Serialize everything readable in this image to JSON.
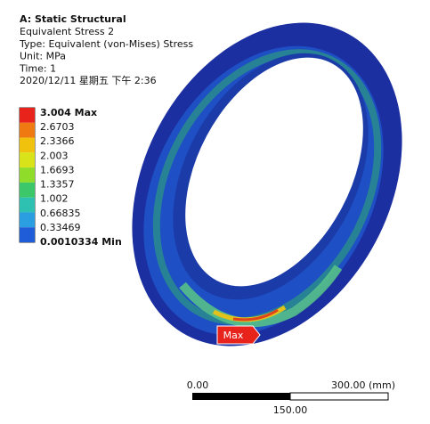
{
  "header": {
    "title": "A: Static Structural",
    "lines": [
      "Equivalent Stress 2",
      "Type: Equivalent (von-Mises) Stress",
      "Unit: MPa",
      "Time: 1",
      "2020/12/11 星期五 下午 2:36"
    ]
  },
  "legend": {
    "labels": [
      "3.004 Max",
      "2.6703",
      "2.3366",
      "2.003",
      "1.6693",
      "1.3357",
      "1.002",
      "0.66835",
      "0.33469",
      "0.0010334 Min"
    ]
  },
  "probe": {
    "label": "Max"
  },
  "scale_bar": {
    "start": "0.00",
    "end": "300.00 (mm)",
    "mid": "150.00"
  }
}
